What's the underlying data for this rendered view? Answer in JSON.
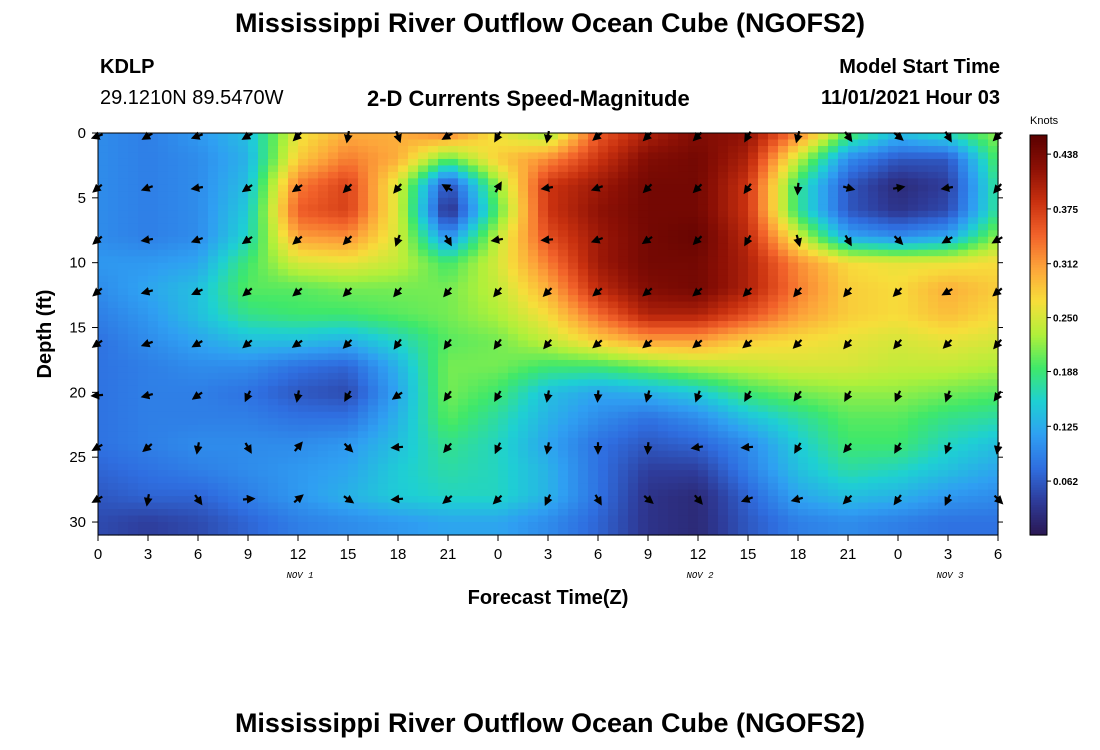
{
  "page_title": "Mississippi River Outflow Ocean Cube (NGOFS2)",
  "station": {
    "id": "KDLP",
    "coords": "29.1210N  89.5470W"
  },
  "model": {
    "label": "Model Start Time",
    "value": "11/01/2021 Hour 03"
  },
  "chart_data": {
    "type": "heatmap",
    "title": "2-D Currents Speed-Magnitude",
    "xlabel": "Forecast Time(Z)",
    "ylabel": "Depth (ft)",
    "x_ticks": [
      "0",
      "3",
      "6",
      "9",
      "12",
      "15",
      "18",
      "21",
      "0",
      "3",
      "6",
      "9",
      "12",
      "15",
      "18",
      "21",
      "0",
      "3",
      "6"
    ],
    "x_range_hours": [
      0,
      54
    ],
    "date_labels": [
      {
        "text": "NOV 1",
        "hour": 12
      },
      {
        "text": "NOV 2",
        "hour": 36
      },
      {
        "text": "NOV 3",
        "hour": 51
      }
    ],
    "y_ticks": [
      0,
      5,
      10,
      15,
      20,
      25,
      30
    ],
    "ylim": [
      0,
      31
    ],
    "y_inverted": true,
    "colorbar": {
      "unit": "Knots",
      "ticks": [
        "0.438",
        "0.375",
        "0.312",
        "0.250",
        "0.188",
        "0.125",
        "0.062"
      ],
      "range": [
        0,
        0.46
      ],
      "colors": [
        "#2a1752",
        "#2e3b99",
        "#2f6ee0",
        "#2f9ff2",
        "#1ed0d3",
        "#3fe86a",
        "#b0f03a",
        "#f7de3a",
        "#fda43a",
        "#f2622a",
        "#c8300f",
        "#8c1005",
        "#5a0000"
      ]
    },
    "arrow_hours": [
      0,
      3,
      6,
      9,
      12,
      15,
      18,
      21,
      24,
      27,
      30,
      33,
      36,
      39,
      42,
      45,
      48,
      51,
      54
    ],
    "arrow_depths": [
      0,
      4,
      8,
      12,
      16,
      20,
      24,
      28
    ],
    "speed_grid_hours": [
      0,
      3,
      6,
      9,
      12,
      15,
      18,
      21,
      24,
      27,
      30,
      33,
      36,
      39,
      42,
      45,
      48,
      51,
      54
    ],
    "speed_grid_depths": [
      0,
      2,
      4,
      6,
      8,
      10,
      12,
      14,
      16,
      18,
      20,
      22,
      24,
      26,
      28,
      30,
      31
    ],
    "speed_grid_knots": [
      [
        0.1,
        0.09,
        0.11,
        0.14,
        0.26,
        0.3,
        0.3,
        0.33,
        0.26,
        0.22,
        0.35,
        0.4,
        0.43,
        0.42,
        0.33,
        0.2,
        0.14,
        0.17,
        0.22
      ],
      [
        0.1,
        0.09,
        0.1,
        0.13,
        0.28,
        0.33,
        0.3,
        0.2,
        0.28,
        0.32,
        0.38,
        0.43,
        0.44,
        0.4,
        0.24,
        0.1,
        0.06,
        0.06,
        0.2
      ],
      [
        0.1,
        0.09,
        0.1,
        0.14,
        0.33,
        0.37,
        0.25,
        0.05,
        0.22,
        0.38,
        0.41,
        0.44,
        0.44,
        0.38,
        0.18,
        0.06,
        0.02,
        0.04,
        0.18
      ],
      [
        0.1,
        0.09,
        0.1,
        0.15,
        0.35,
        0.37,
        0.25,
        0.02,
        0.2,
        0.38,
        0.42,
        0.44,
        0.44,
        0.38,
        0.18,
        0.06,
        0.03,
        0.05,
        0.18
      ],
      [
        0.1,
        0.09,
        0.1,
        0.16,
        0.31,
        0.32,
        0.25,
        0.1,
        0.24,
        0.36,
        0.41,
        0.44,
        0.45,
        0.39,
        0.25,
        0.12,
        0.1,
        0.12,
        0.22
      ],
      [
        0.11,
        0.11,
        0.12,
        0.19,
        0.25,
        0.26,
        0.24,
        0.19,
        0.25,
        0.33,
        0.41,
        0.44,
        0.44,
        0.4,
        0.32,
        0.27,
        0.26,
        0.26,
        0.27
      ],
      [
        0.1,
        0.12,
        0.14,
        0.2,
        0.2,
        0.21,
        0.21,
        0.21,
        0.24,
        0.3,
        0.39,
        0.43,
        0.44,
        0.4,
        0.33,
        0.28,
        0.27,
        0.3,
        0.28
      ],
      [
        0.09,
        0.11,
        0.14,
        0.18,
        0.19,
        0.19,
        0.2,
        0.21,
        0.23,
        0.27,
        0.34,
        0.4,
        0.4,
        0.36,
        0.31,
        0.28,
        0.27,
        0.29,
        0.27
      ],
      [
        0.08,
        0.1,
        0.12,
        0.14,
        0.14,
        0.13,
        0.16,
        0.2,
        0.21,
        0.24,
        0.28,
        0.31,
        0.31,
        0.28,
        0.27,
        0.26,
        0.25,
        0.26,
        0.25
      ],
      [
        0.08,
        0.09,
        0.1,
        0.1,
        0.08,
        0.07,
        0.13,
        0.21,
        0.21,
        0.19,
        0.19,
        0.21,
        0.23,
        0.24,
        0.25,
        0.25,
        0.24,
        0.24,
        0.23
      ],
      [
        0.08,
        0.09,
        0.09,
        0.08,
        0.06,
        0.05,
        0.12,
        0.21,
        0.19,
        0.14,
        0.12,
        0.13,
        0.15,
        0.19,
        0.21,
        0.22,
        0.22,
        0.21,
        0.2
      ],
      [
        0.08,
        0.09,
        0.09,
        0.09,
        0.08,
        0.08,
        0.13,
        0.2,
        0.17,
        0.13,
        0.1,
        0.08,
        0.1,
        0.14,
        0.17,
        0.2,
        0.2,
        0.18,
        0.17
      ],
      [
        0.08,
        0.09,
        0.1,
        0.1,
        0.1,
        0.11,
        0.14,
        0.18,
        0.16,
        0.12,
        0.08,
        0.06,
        0.07,
        0.1,
        0.15,
        0.19,
        0.19,
        0.16,
        0.14
      ],
      [
        0.07,
        0.08,
        0.09,
        0.1,
        0.11,
        0.12,
        0.15,
        0.17,
        0.16,
        0.13,
        0.08,
        0.04,
        0.04,
        0.09,
        0.14,
        0.17,
        0.16,
        0.14,
        0.12
      ],
      [
        0.06,
        0.07,
        0.07,
        0.09,
        0.11,
        0.13,
        0.15,
        0.16,
        0.16,
        0.13,
        0.08,
        0.03,
        0.02,
        0.07,
        0.12,
        0.14,
        0.13,
        0.11,
        0.1
      ],
      [
        0.05,
        0.04,
        0.05,
        0.07,
        0.09,
        0.1,
        0.11,
        0.12,
        0.12,
        0.1,
        0.07,
        0.03,
        0.02,
        0.06,
        0.09,
        0.1,
        0.09,
        0.08,
        0.08
      ],
      [
        0.05,
        0.04,
        0.05,
        0.07,
        0.09,
        0.1,
        0.11,
        0.12,
        0.12,
        0.1,
        0.07,
        0.03,
        0.02,
        0.06,
        0.09,
        0.1,
        0.09,
        0.08,
        0.08
      ]
    ],
    "arrows": [
      [
        0,
        0,
        160
      ],
      [
        3,
        0,
        150
      ],
      [
        6,
        0,
        160
      ],
      [
        9,
        0,
        150
      ],
      [
        12,
        0,
        135
      ],
      [
        15,
        0,
        100
      ],
      [
        18,
        0,
        70
      ],
      [
        21,
        0,
        150
      ],
      [
        24,
        0,
        120
      ],
      [
        27,
        0,
        100
      ],
      [
        30,
        0,
        140
      ],
      [
        33,
        0,
        135
      ],
      [
        36,
        0,
        135
      ],
      [
        39,
        0,
        120
      ],
      [
        42,
        0,
        105
      ],
      [
        45,
        0,
        55
      ],
      [
        48,
        0,
        40
      ],
      [
        51,
        0,
        60
      ],
      [
        54,
        0,
        135
      ],
      [
        0,
        4,
        140
      ],
      [
        3,
        4,
        160
      ],
      [
        6,
        4,
        170
      ],
      [
        9,
        4,
        145
      ],
      [
        12,
        4,
        145
      ],
      [
        15,
        4,
        135
      ],
      [
        18,
        4,
        130
      ],
      [
        21,
        4,
        -150
      ],
      [
        24,
        4,
        -60
      ],
      [
        27,
        4,
        170
      ],
      [
        30,
        4,
        160
      ],
      [
        33,
        4,
        135
      ],
      [
        36,
        4,
        135
      ],
      [
        39,
        4,
        125
      ],
      [
        42,
        4,
        95
      ],
      [
        45,
        4,
        15
      ],
      [
        48,
        4,
        -10
      ],
      [
        51,
        4,
        170
      ],
      [
        54,
        4,
        130
      ],
      [
        0,
        8,
        140
      ],
      [
        3,
        8,
        170
      ],
      [
        6,
        8,
        160
      ],
      [
        9,
        8,
        145
      ],
      [
        12,
        8,
        140
      ],
      [
        15,
        8,
        135
      ],
      [
        18,
        8,
        110
      ],
      [
        21,
        8,
        60
      ],
      [
        24,
        8,
        170
      ],
      [
        27,
        8,
        175
      ],
      [
        30,
        8,
        160
      ],
      [
        33,
        8,
        145
      ],
      [
        36,
        8,
        135
      ],
      [
        39,
        8,
        120
      ],
      [
        42,
        8,
        75
      ],
      [
        45,
        8,
        60
      ],
      [
        48,
        8,
        45
      ],
      [
        51,
        8,
        150
      ],
      [
        54,
        8,
        150
      ],
      [
        0,
        12,
        140
      ],
      [
        3,
        12,
        165
      ],
      [
        6,
        12,
        155
      ],
      [
        9,
        12,
        140
      ],
      [
        12,
        12,
        140
      ],
      [
        15,
        12,
        135
      ],
      [
        18,
        12,
        130
      ],
      [
        21,
        12,
        130
      ],
      [
        24,
        12,
        130
      ],
      [
        27,
        12,
        135
      ],
      [
        30,
        12,
        140
      ],
      [
        33,
        12,
        140
      ],
      [
        36,
        12,
        140
      ],
      [
        39,
        12,
        135
      ],
      [
        42,
        12,
        130
      ],
      [
        45,
        12,
        130
      ],
      [
        48,
        12,
        135
      ],
      [
        51,
        12,
        150
      ],
      [
        54,
        12,
        140
      ],
      [
        0,
        16,
        145
      ],
      [
        3,
        16,
        160
      ],
      [
        6,
        16,
        150
      ],
      [
        9,
        16,
        140
      ],
      [
        12,
        16,
        145
      ],
      [
        15,
        16,
        135
      ],
      [
        18,
        16,
        125
      ],
      [
        21,
        16,
        125
      ],
      [
        24,
        16,
        125
      ],
      [
        27,
        16,
        130
      ],
      [
        30,
        16,
        140
      ],
      [
        33,
        16,
        140
      ],
      [
        36,
        16,
        140
      ],
      [
        39,
        16,
        140
      ],
      [
        42,
        16,
        135
      ],
      [
        45,
        16,
        130
      ],
      [
        48,
        16,
        130
      ],
      [
        51,
        16,
        135
      ],
      [
        54,
        16,
        130
      ],
      [
        0,
        20,
        175
      ],
      [
        3,
        20,
        165
      ],
      [
        6,
        20,
        145
      ],
      [
        9,
        20,
        115
      ],
      [
        12,
        20,
        100
      ],
      [
        15,
        20,
        120
      ],
      [
        18,
        20,
        145
      ],
      [
        21,
        20,
        125
      ],
      [
        24,
        20,
        120
      ],
      [
        27,
        20,
        100
      ],
      [
        30,
        20,
        95
      ],
      [
        33,
        20,
        105
      ],
      [
        36,
        20,
        110
      ],
      [
        39,
        20,
        120
      ],
      [
        42,
        20,
        125
      ],
      [
        45,
        20,
        120
      ],
      [
        48,
        20,
        115
      ],
      [
        51,
        20,
        110
      ],
      [
        54,
        20,
        125
      ],
      [
        0,
        24,
        150
      ],
      [
        3,
        24,
        140
      ],
      [
        6,
        24,
        100
      ],
      [
        9,
        24,
        60
      ],
      [
        12,
        24,
        -50
      ],
      [
        15,
        24,
        45
      ],
      [
        18,
        24,
        175
      ],
      [
        21,
        24,
        130
      ],
      [
        24,
        24,
        115
      ],
      [
        27,
        24,
        100
      ],
      [
        30,
        24,
        90
      ],
      [
        33,
        24,
        95
      ],
      [
        36,
        24,
        170
      ],
      [
        39,
        24,
        175
      ],
      [
        42,
        24,
        120
      ],
      [
        45,
        24,
        130
      ],
      [
        48,
        24,
        120
      ],
      [
        51,
        24,
        110
      ],
      [
        54,
        24,
        100
      ],
      [
        0,
        28,
        150
      ],
      [
        3,
        28,
        100
      ],
      [
        6,
        28,
        55
      ],
      [
        9,
        28,
        -5
      ],
      [
        12,
        28,
        -40
      ],
      [
        15,
        28,
        35
      ],
      [
        18,
        28,
        175
      ],
      [
        21,
        28,
        140
      ],
      [
        24,
        28,
        135
      ],
      [
        27,
        28,
        115
      ],
      [
        30,
        28,
        60
      ],
      [
        33,
        28,
        40
      ],
      [
        36,
        28,
        50
      ],
      [
        39,
        28,
        160
      ],
      [
        42,
        28,
        165
      ],
      [
        45,
        28,
        135
      ],
      [
        48,
        28,
        125
      ],
      [
        51,
        28,
        115
      ],
      [
        54,
        28,
        45
      ]
    ]
  }
}
